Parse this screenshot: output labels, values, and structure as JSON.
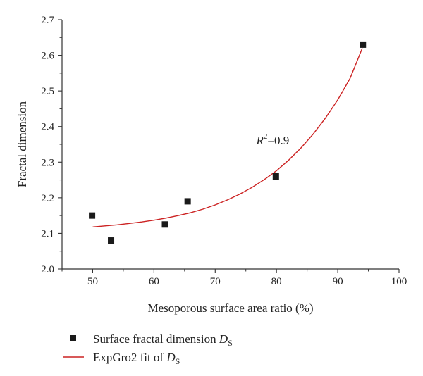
{
  "chart_data": {
    "type": "scatter",
    "title": "",
    "xlabel": "Mesoporous surface area ratio (%)",
    "ylabel": "Fractal dimension",
    "xlim": [
      45,
      100
    ],
    "ylim": [
      2.0,
      2.7
    ],
    "x_ticks": [
      50,
      60,
      70,
      80,
      90,
      100
    ],
    "y_ticks": [
      2.0,
      2.1,
      2.2,
      2.3,
      2.4,
      2.5,
      2.6,
      2.7
    ],
    "x_tick_labels": [
      "50",
      "60",
      "70",
      "80",
      "90",
      "100"
    ],
    "y_tick_labels": [
      "2.0",
      "2.1",
      "2.2",
      "2.3",
      "2.4",
      "2.5",
      "2.6",
      "2.7"
    ],
    "grid": false,
    "legend_position": "bottom",
    "series": [
      {
        "name": "Surface fractal dimension D_S",
        "kind": "points",
        "color": "#1a1a1a",
        "x": [
          49.9,
          53.0,
          61.8,
          65.5,
          79.9,
          94.1
        ],
        "y": [
          2.15,
          2.08,
          2.125,
          2.19,
          2.26,
          2.63
        ]
      },
      {
        "name": "ExpGro2 fit of D_S",
        "kind": "line",
        "color": "#cc2222",
        "x": [
          50,
          52,
          54,
          56,
          58,
          60,
          62,
          64,
          66,
          68,
          70,
          72,
          74,
          76,
          78,
          80,
          82,
          84,
          86,
          88,
          90,
          92,
          94
        ],
        "y": [
          2.118,
          2.121,
          2.124,
          2.128,
          2.132,
          2.137,
          2.143,
          2.15,
          2.158,
          2.168,
          2.18,
          2.194,
          2.21,
          2.229,
          2.251,
          2.276,
          2.306,
          2.34,
          2.379,
          2.424,
          2.475,
          2.535,
          2.62
        ]
      }
    ],
    "legend": [
      {
        "label": "Surface fractal dimension ",
        "subscript_base": "D",
        "subscript": "S",
        "marker": "square"
      },
      {
        "label": "ExpGro2 fit of ",
        "subscript_base": "D",
        "subscript": "S",
        "marker": "line"
      }
    ],
    "annotations": [
      {
        "base": "R",
        "sup": "2",
        "rest": "=0.9",
        "x": 79,
        "y": 2.35
      }
    ]
  }
}
